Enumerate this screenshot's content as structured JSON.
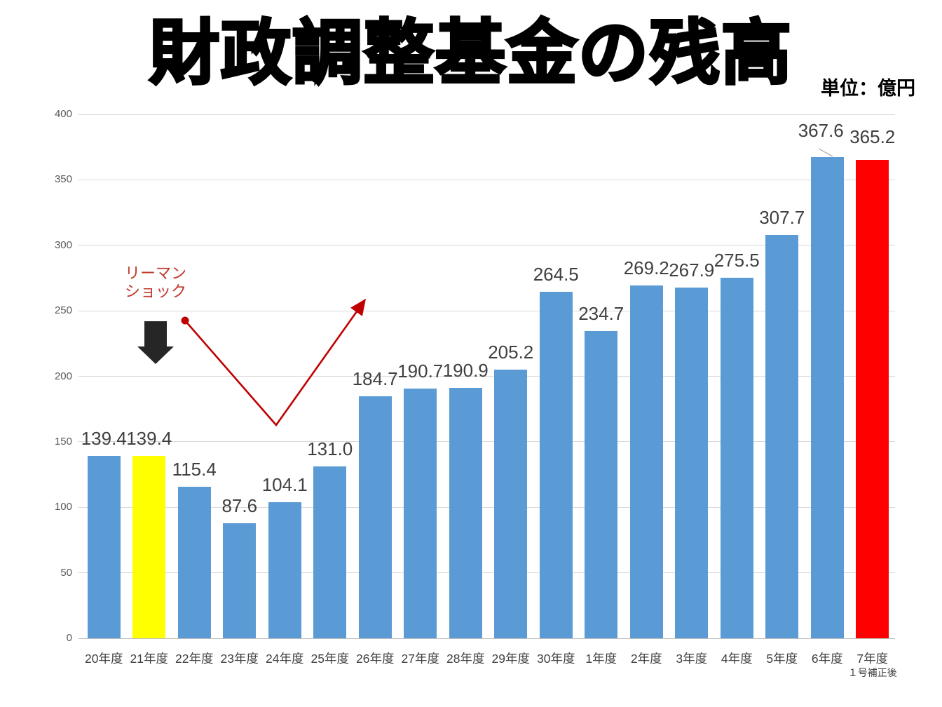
{
  "chart_data": {
    "type": "bar",
    "title": "財政調整基金の残高",
    "unit_label": "単位：億円",
    "categories": [
      "20年度",
      "21年度",
      "22年度",
      "23年度",
      "24年度",
      "25年度",
      "26年度",
      "27年度",
      "28年度",
      "29年度",
      "30年度",
      "1年度",
      "2年度",
      "3年度",
      "4年度",
      "5年度",
      "6年度",
      "7年度"
    ],
    "category_sublabels": {
      "17": "１号補正後"
    },
    "values": [
      139.4,
      139.4,
      115.4,
      87.6,
      104.1,
      131.0,
      184.7,
      190.7,
      190.9,
      205.2,
      264.5,
      234.7,
      269.2,
      267.9,
      275.5,
      307.7,
      367.6,
      365.2
    ],
    "value_label_decimals": 1,
    "xlabel": "",
    "ylabel": "",
    "ylim": [
      0,
      400
    ],
    "yticks": [
      0,
      50,
      100,
      150,
      200,
      250,
      300,
      350,
      400
    ],
    "grid": true,
    "legend": false,
    "colors": {
      "bar_default": "#5B9BD5",
      "bar_highlight_yellow": "#FFFF00",
      "bar_highlight_red": "#FF0000",
      "annotation_red": "#C00000",
      "annotation_text_red": "#C0392B",
      "gridline": "#D9D9D9"
    },
    "bar_color_overrides": {
      "1": "#FFFF00",
      "17": "#FF0000"
    },
    "value_label_offsets": {
      "16": [
        -9,
        -13
      ],
      "17": [
        0,
        -8
      ]
    },
    "annotations": {
      "lehman_label": "リーマン\nショック",
      "lehman_arrow": "black-down-arrow",
      "trend_arrow": "red-v-shaped-recovery-arrow"
    }
  }
}
